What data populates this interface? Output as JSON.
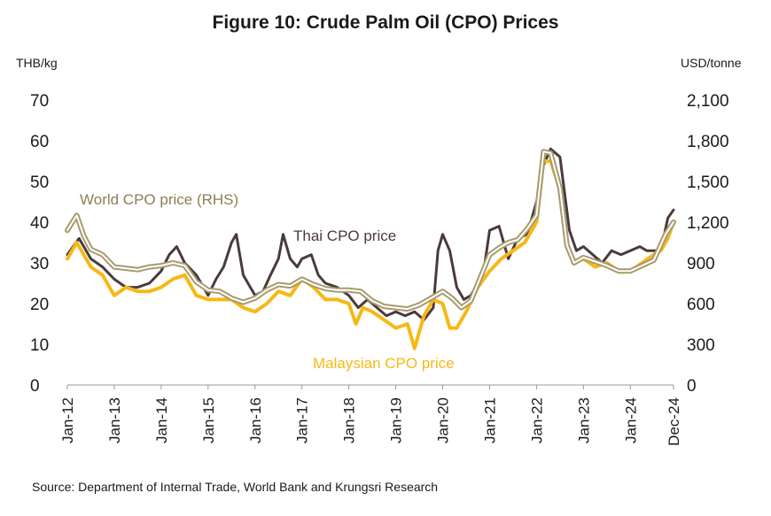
{
  "title": "Figure 10: Crude Palm Oil (CPO) Prices",
  "source": "Source: Department of Internal Trade, World Bank and Krungsri Research",
  "colors": {
    "thai": "#4a3a3c",
    "malaysian": "#f7b815",
    "world": "#a89a6e"
  },
  "chart_data": {
    "type": "line",
    "left_axis": {
      "label": "THB/kg",
      "ylim": [
        0,
        70
      ],
      "ticks": [
        "0",
        "10",
        "20",
        "30",
        "40",
        "50",
        "60",
        "70"
      ]
    },
    "right_axis": {
      "label": "USD/tonne",
      "ylim": [
        0,
        2100
      ],
      "ticks": [
        "0",
        "300",
        "600",
        "900",
        "1,200",
        "1,500",
        "1,800",
        "2,100"
      ]
    },
    "x_labels": [
      "Jan-12",
      "Jan-13",
      "Jan-14",
      "Jan-15",
      "Jan-16",
      "Jan-17",
      "Jan-18",
      "Jan-19",
      "Jan-20",
      "Jan-21",
      "Jan-22",
      "Jan-23",
      "Jan-24",
      "Dec-24"
    ],
    "x_range": [
      "Jan-12",
      "Dec-24"
    ],
    "series": [
      {
        "name": "Thai CPO price",
        "axis": "left",
        "color": "#4a3a3c",
        "label_at": "2016.6",
        "points": [
          [
            2012.0,
            32
          ],
          [
            2012.25,
            36
          ],
          [
            2012.5,
            31
          ],
          [
            2012.75,
            29
          ],
          [
            2013.0,
            26
          ],
          [
            2013.25,
            24
          ],
          [
            2013.5,
            24
          ],
          [
            2013.75,
            25
          ],
          [
            2014.0,
            28
          ],
          [
            2014.17,
            32
          ],
          [
            2014.33,
            34
          ],
          [
            2014.5,
            30
          ],
          [
            2014.75,
            27
          ],
          [
            2015.0,
            22
          ],
          [
            2015.17,
            26
          ],
          [
            2015.33,
            29
          ],
          [
            2015.5,
            35
          ],
          [
            2015.6,
            37
          ],
          [
            2015.75,
            27
          ],
          [
            2015.9,
            24
          ],
          [
            2016.0,
            22
          ],
          [
            2016.17,
            23
          ],
          [
            2016.33,
            27
          ],
          [
            2016.5,
            31
          ],
          [
            2016.6,
            37
          ],
          [
            2016.75,
            31
          ],
          [
            2016.9,
            29
          ],
          [
            2017.0,
            31
          ],
          [
            2017.2,
            32
          ],
          [
            2017.35,
            27
          ],
          [
            2017.5,
            25
          ],
          [
            2017.75,
            24
          ],
          [
            2018.0,
            22
          ],
          [
            2018.2,
            19
          ],
          [
            2018.4,
            21
          ],
          [
            2018.6,
            19
          ],
          [
            2018.8,
            17
          ],
          [
            2019.0,
            18
          ],
          [
            2019.2,
            17
          ],
          [
            2019.4,
            18
          ],
          [
            2019.6,
            16
          ],
          [
            2019.8,
            19
          ],
          [
            2019.9,
            33
          ],
          [
            2020.0,
            37
          ],
          [
            2020.15,
            33
          ],
          [
            2020.3,
            24
          ],
          [
            2020.45,
            21
          ],
          [
            2020.6,
            22
          ],
          [
            2020.75,
            25
          ],
          [
            2020.9,
            30
          ],
          [
            2021.0,
            38
          ],
          [
            2021.2,
            39
          ],
          [
            2021.4,
            31
          ],
          [
            2021.6,
            36
          ],
          [
            2021.8,
            37
          ],
          [
            2022.0,
            45
          ],
          [
            2022.15,
            54
          ],
          [
            2022.3,
            58
          ],
          [
            2022.5,
            56
          ],
          [
            2022.7,
            38
          ],
          [
            2022.85,
            33
          ],
          [
            2023.0,
            34
          ],
          [
            2023.2,
            32
          ],
          [
            2023.4,
            30
          ],
          [
            2023.6,
            33
          ],
          [
            2023.8,
            32
          ],
          [
            2024.0,
            33
          ],
          [
            2024.2,
            34
          ],
          [
            2024.35,
            33
          ],
          [
            2024.5,
            33
          ],
          [
            2024.65,
            33
          ],
          [
            2024.8,
            41
          ],
          [
            2024.92,
            43
          ]
        ]
      },
      {
        "name": "Malaysian CPO price",
        "axis": "left",
        "color": "#f7b815",
        "label_at": "2019.5",
        "points": [
          [
            2012.0,
            31
          ],
          [
            2012.2,
            35
          ],
          [
            2012.35,
            32
          ],
          [
            2012.5,
            29
          ],
          [
            2012.75,
            27
          ],
          [
            2013.0,
            22
          ],
          [
            2013.25,
            24
          ],
          [
            2013.5,
            23
          ],
          [
            2013.75,
            23
          ],
          [
            2014.0,
            24
          ],
          [
            2014.25,
            26
          ],
          [
            2014.5,
            27
          ],
          [
            2014.75,
            22
          ],
          [
            2015.0,
            21
          ],
          [
            2015.25,
            21
          ],
          [
            2015.5,
            21
          ],
          [
            2015.75,
            19
          ],
          [
            2016.0,
            18
          ],
          [
            2016.25,
            20
          ],
          [
            2016.5,
            23
          ],
          [
            2016.75,
            22
          ],
          [
            2017.0,
            26
          ],
          [
            2017.25,
            24
          ],
          [
            2017.5,
            21
          ],
          [
            2017.75,
            21
          ],
          [
            2018.0,
            20
          ],
          [
            2018.15,
            15
          ],
          [
            2018.3,
            19
          ],
          [
            2018.5,
            18
          ],
          [
            2018.75,
            16
          ],
          [
            2019.0,
            14
          ],
          [
            2019.25,
            15
          ],
          [
            2019.4,
            9
          ],
          [
            2019.6,
            17
          ],
          [
            2019.8,
            21
          ],
          [
            2020.0,
            20
          ],
          [
            2020.15,
            14
          ],
          [
            2020.3,
            14
          ],
          [
            2020.5,
            18
          ],
          [
            2020.75,
            24
          ],
          [
            2021.0,
            28
          ],
          [
            2021.25,
            31
          ],
          [
            2021.5,
            33
          ],
          [
            2021.75,
            35
          ],
          [
            2022.0,
            40
          ],
          [
            2022.15,
            55
          ],
          [
            2022.3,
            55
          ],
          [
            2022.5,
            48
          ],
          [
            2022.65,
            34
          ],
          [
            2022.8,
            30
          ],
          [
            2023.0,
            31
          ],
          [
            2023.25,
            29
          ],
          [
            2023.5,
            30
          ],
          [
            2023.75,
            28
          ],
          [
            2024.0,
            28
          ],
          [
            2024.25,
            30
          ],
          [
            2024.5,
            32
          ],
          [
            2024.65,
            33
          ],
          [
            2024.8,
            36
          ],
          [
            2024.92,
            40
          ]
        ]
      },
      {
        "name": "World CPO price (RHS)",
        "axis": "right",
        "color": "#a89a6e",
        "label_at": "2012.8",
        "points": [
          [
            2012.0,
            1140
          ],
          [
            2012.2,
            1250
          ],
          [
            2012.35,
            1100
          ],
          [
            2012.5,
            1000
          ],
          [
            2012.75,
            960
          ],
          [
            2013.0,
            870
          ],
          [
            2013.25,
            860
          ],
          [
            2013.5,
            850
          ],
          [
            2013.75,
            870
          ],
          [
            2014.0,
            880
          ],
          [
            2014.25,
            900
          ],
          [
            2014.5,
            880
          ],
          [
            2014.75,
            760
          ],
          [
            2015.0,
            700
          ],
          [
            2015.25,
            690
          ],
          [
            2015.5,
            640
          ],
          [
            2015.75,
            610
          ],
          [
            2016.0,
            640
          ],
          [
            2016.25,
            700
          ],
          [
            2016.5,
            740
          ],
          [
            2016.75,
            730
          ],
          [
            2017.0,
            780
          ],
          [
            2017.25,
            740
          ],
          [
            2017.5,
            710
          ],
          [
            2017.75,
            700
          ],
          [
            2018.0,
            700
          ],
          [
            2018.25,
            690
          ],
          [
            2018.5,
            620
          ],
          [
            2018.75,
            580
          ],
          [
            2019.0,
            570
          ],
          [
            2019.25,
            560
          ],
          [
            2019.5,
            590
          ],
          [
            2019.75,
            640
          ],
          [
            2020.0,
            690
          ],
          [
            2020.2,
            640
          ],
          [
            2020.4,
            570
          ],
          [
            2020.6,
            620
          ],
          [
            2020.8,
            790
          ],
          [
            2021.0,
            960
          ],
          [
            2021.2,
            1010
          ],
          [
            2021.4,
            1050
          ],
          [
            2021.6,
            1070
          ],
          [
            2021.8,
            1150
          ],
          [
            2022.0,
            1250
          ],
          [
            2022.15,
            1720
          ],
          [
            2022.3,
            1710
          ],
          [
            2022.5,
            1450
          ],
          [
            2022.65,
            1030
          ],
          [
            2022.8,
            900
          ],
          [
            2023.0,
            940
          ],
          [
            2023.25,
            910
          ],
          [
            2023.5,
            880
          ],
          [
            2023.75,
            840
          ],
          [
            2024.0,
            840
          ],
          [
            2024.25,
            880
          ],
          [
            2024.5,
            920
          ],
          [
            2024.75,
            1110
          ],
          [
            2024.92,
            1200
          ]
        ]
      }
    ]
  }
}
